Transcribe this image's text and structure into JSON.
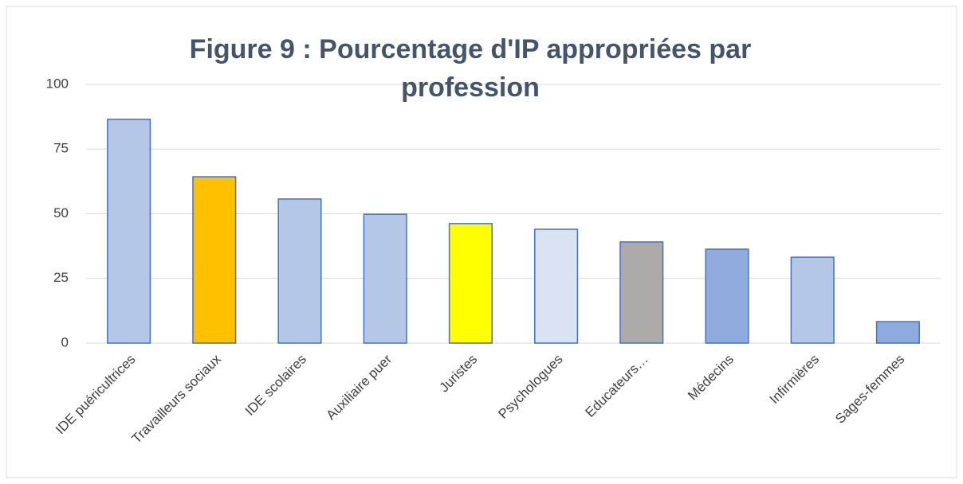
{
  "chart_data": {
    "type": "bar",
    "title": "Figure 9 : Pourcentage d'IP appropriées par profession",
    "categories": [
      "IDE puéricultrices",
      "Travailleurs sociaux",
      "IDE scolaires",
      "Auxiliaire puer",
      "Juristes",
      "Psychologues",
      "Educateurs…",
      "Médecins",
      "Infirmières",
      "Sages-femmes"
    ],
    "values": [
      86.5,
      64.3,
      55.7,
      49.8,
      46.2,
      44,
      39.1,
      36.3,
      33.2,
      8.3
    ],
    "colors": [
      "#b4c7e7",
      "#ffc000",
      "#b4c7e7",
      "#b4c7e7",
      "#ffff00",
      "#dae3f3",
      "#aeaaaa",
      "#8faadc",
      "#b4c7e7",
      "#8faadc"
    ],
    "ylim": [
      0,
      100
    ],
    "yticks": [
      0,
      25,
      50,
      75,
      100
    ],
    "grid": true
  }
}
